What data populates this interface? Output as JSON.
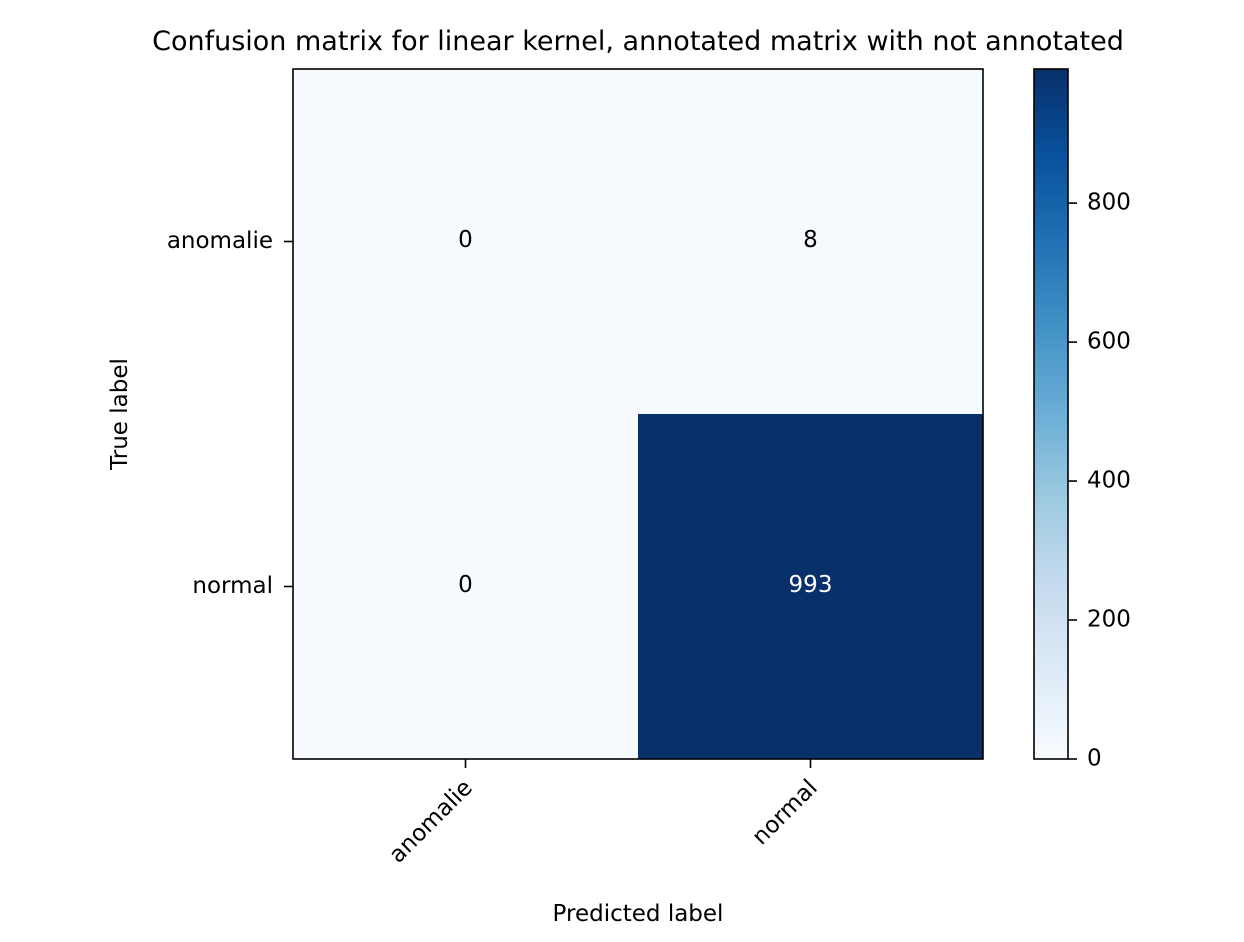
{
  "chart_data": {
    "type": "heatmap",
    "title": "Confusion matrix for linear kernel, annotated matrix with not annotated",
    "xlabel": "Predicted label",
    "ylabel": "True label",
    "x_categories": [
      "anomalie",
      "normal"
    ],
    "y_categories": [
      "anomalie",
      "normal"
    ],
    "values": [
      [
        0,
        8
      ],
      [
        0,
        993
      ]
    ],
    "colormap": "Blues",
    "colorbar": {
      "range": [
        0,
        993
      ],
      "ticks": [
        0,
        200,
        400,
        600,
        800
      ],
      "tick_labels": [
        "0",
        "200",
        "400",
        "600",
        "800"
      ]
    },
    "colors": {
      "low": "#f7fbff",
      "high": "#08306b",
      "annotation_dark": "#000000",
      "annotation_light": "#ffffff"
    },
    "grid": false
  }
}
